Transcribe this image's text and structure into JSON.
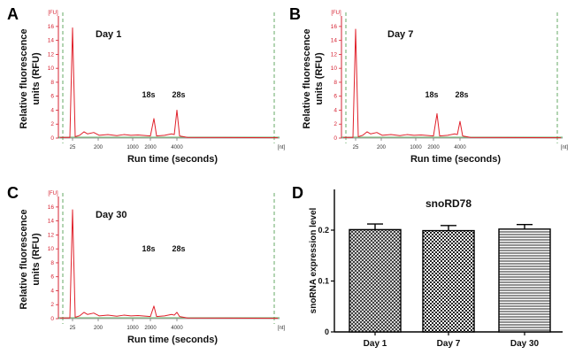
{
  "figure": {
    "panel_letters": [
      "A",
      "B",
      "C",
      "D"
    ]
  },
  "colors": {
    "trace": "#e0202a",
    "axis_red": "#d62030",
    "baseline": "#3a9a3a",
    "marker_line": "#66aa66",
    "text": "#111111"
  },
  "chart_data": [
    {
      "type": "line",
      "panel": "A",
      "title": "Day 1",
      "xlabel": "Run time (seconds)",
      "ylabel_lines": [
        "Relative fluorescence",
        "units (RFU)"
      ],
      "y_unit": "[FU]",
      "x_unit": "[nt]",
      "x_ticks": [
        "25",
        "200",
        "1000",
        "2000",
        "4000"
      ],
      "y_ticks": [
        "0",
        "2",
        "4",
        "6",
        "8",
        "10",
        "12",
        "14",
        "16"
      ],
      "ylim": [
        0,
        17
      ],
      "peak_labels": [
        "18s",
        "28s"
      ],
      "peaks": [
        {
          "nt": "25",
          "value": 15.8
        },
        {
          "nt": "2000",
          "value": 2.8
        },
        {
          "nt": "4000",
          "value": 4.0
        }
      ]
    },
    {
      "type": "line",
      "panel": "B",
      "title": "Day 7",
      "xlabel": "Run time (seconds)",
      "ylabel_lines": [
        "Relative fluorescence",
        "units (RFU)"
      ],
      "y_unit": "[FU]",
      "x_unit": "[nt]",
      "x_ticks": [
        "25",
        "200",
        "1000",
        "2000",
        "4000"
      ],
      "y_ticks": [
        "0",
        "2",
        "4",
        "6",
        "8",
        "10",
        "12",
        "14",
        "16"
      ],
      "ylim": [
        0,
        17
      ],
      "peak_labels": [
        "18s",
        "28s"
      ],
      "peaks": [
        {
          "nt": "25",
          "value": 15.6
        },
        {
          "nt": "2000",
          "value": 3.5
        },
        {
          "nt": "4000",
          "value": 2.4
        }
      ]
    },
    {
      "type": "line",
      "panel": "C",
      "title": "Day 30",
      "xlabel": "Run time (seconds)",
      "ylabel_lines": [
        "Relative fluorescence",
        "units (RFU)"
      ],
      "y_unit": "[FU]",
      "x_unit": "[nt]",
      "x_ticks": [
        "25",
        "200",
        "1000",
        "2000",
        "4000"
      ],
      "y_ticks": [
        "0",
        "2",
        "4",
        "6",
        "8",
        "10",
        "12",
        "14",
        "16"
      ],
      "ylim": [
        0,
        17
      ],
      "peak_labels": [
        "18s",
        "28s"
      ],
      "peaks": [
        {
          "nt": "25",
          "value": 15.6
        },
        {
          "nt": "2000",
          "value": 1.8
        },
        {
          "nt": "4000",
          "value": 0.9
        }
      ]
    },
    {
      "type": "bar",
      "panel": "D",
      "title": "snoRD78",
      "xlabel": "",
      "ylabel": "snoRNA expression level",
      "categories": [
        "Day 1",
        "Day 7",
        "Day 30"
      ],
      "values": [
        0.201,
        0.199,
        0.202
      ],
      "errors": [
        0.011,
        0.01,
        0.009
      ],
      "fill_patterns": [
        "diagonal-crosshatch",
        "checkerboard",
        "horizontal-lines"
      ],
      "y_ticks": [
        "0",
        "0.1",
        "0.2"
      ],
      "ylim": [
        0,
        0.28
      ]
    }
  ]
}
